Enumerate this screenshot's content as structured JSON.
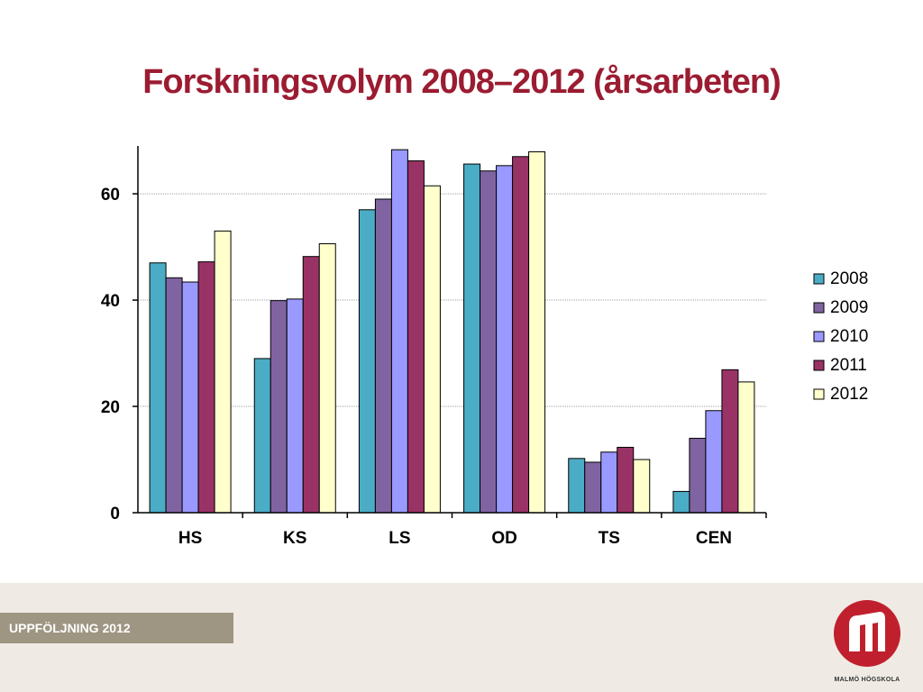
{
  "title": "Forskningsvolym 2008–2012 (årsarbeten)",
  "footer": {
    "band_label": "UPPFÖLJNING 2012",
    "logo_text": "MALMÖ HÖGSKOLA"
  },
  "chart_data": {
    "type": "bar",
    "categories": [
      "HS",
      "KS",
      "LS",
      "OD",
      "TS",
      "CEN"
    ],
    "series": [
      {
        "name": "2008",
        "color": "#4bacc6",
        "values": [
          47,
          29,
          57,
          65.6,
          10.2,
          4
        ]
      },
      {
        "name": "2009",
        "color": "#8064a2",
        "values": [
          44.2,
          39.9,
          59,
          64.3,
          9.5,
          14
        ]
      },
      {
        "name": "2010",
        "color": "#9999ff",
        "values": [
          43.4,
          40.2,
          68.3,
          65.3,
          11.4,
          19.2
        ]
      },
      {
        "name": "2011",
        "color": "#993366",
        "values": [
          47.2,
          48.2,
          66.2,
          67,
          12.3,
          26.9
        ]
      },
      {
        "name": "2012",
        "color": "#ffffcc",
        "values": [
          53,
          50.6,
          61.5,
          67.9,
          10,
          24.6
        ]
      }
    ],
    "yticks": [
      0,
      20,
      40,
      60
    ],
    "ylim": [
      0,
      69
    ],
    "grid": true,
    "legend": "right",
    "xlabel": "",
    "ylabel": ""
  }
}
